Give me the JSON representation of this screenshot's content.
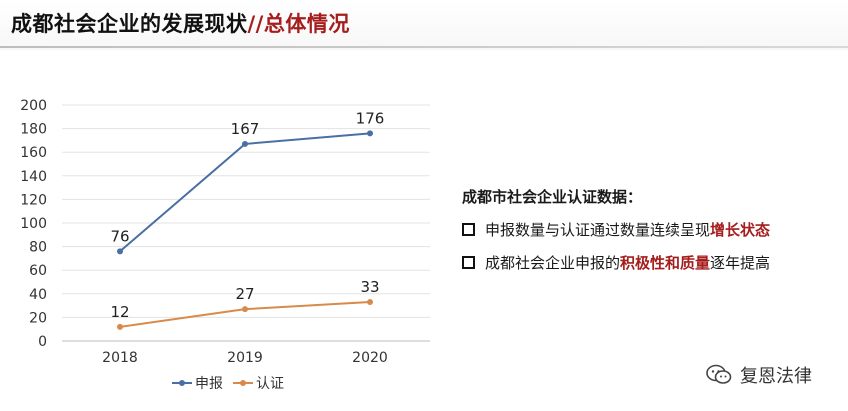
{
  "header": {
    "title_main": "成都社会企业的发展现状",
    "title_sep": "//",
    "title_sub": "总体情况"
  },
  "chart_data": {
    "type": "line",
    "title": "",
    "xlabel": "",
    "ylabel": "",
    "categories": [
      "2018",
      "2019",
      "2020"
    ],
    "ylim": [
      0,
      200
    ],
    "yticks": [
      0,
      20,
      40,
      60,
      80,
      100,
      120,
      140,
      160,
      180,
      200
    ],
    "grid": true,
    "legend_position": "bottom",
    "series": [
      {
        "name": "申报",
        "values": [
          76,
          167,
          176
        ],
        "color": "#4a6fa5"
      },
      {
        "name": "认证",
        "values": [
          12,
          27,
          33
        ],
        "color": "#d88a4a"
      }
    ]
  },
  "notes": {
    "heading": "成都市社会企业认证数据：",
    "items": [
      {
        "pre": "申报数量与认证通过数量连续呈现",
        "highlight": "增长状态",
        "post": ""
      },
      {
        "pre": "成都社会企业申报的",
        "highlight": "积极性和质量",
        "post": "逐年提高"
      }
    ]
  },
  "watermark": {
    "text": "复恩法律",
    "icon": "wechat-icon"
  },
  "colors": {
    "accent": "#a51d1d",
    "grid": "#e3e3e3"
  }
}
